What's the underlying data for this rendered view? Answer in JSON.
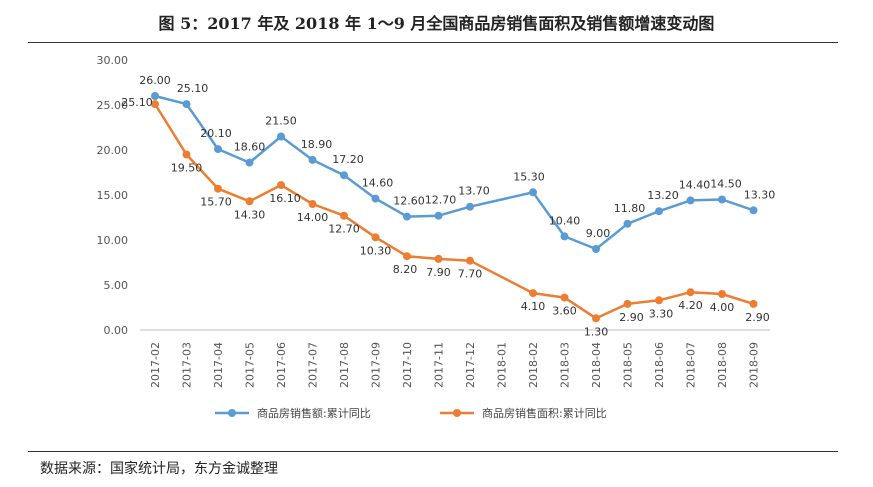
{
  "header": {
    "title": "图 5：2017 年及 2018 年 1～9 月全国商品房销售面积及销售额增速变动图"
  },
  "footer": {
    "source": "数据来源：国家统计局，东方金诚整理"
  },
  "chart_data": {
    "type": "line",
    "categories": [
      "2017-02",
      "2017-03",
      "2017-04",
      "2017-05",
      "2017-06",
      "2017-07",
      "2017-08",
      "2017-09",
      "2017-10",
      "2017-11",
      "2017-12",
      "2018-01",
      "2018-02",
      "2018-03",
      "2018-04",
      "2018-05",
      "2018-06",
      "2018-07",
      "2018-08",
      "2018-09"
    ],
    "ylim": [
      0,
      30
    ],
    "yticks": [
      "0.00",
      "5.00",
      "10.00",
      "15.00",
      "20.00",
      "25.00",
      "30.00"
    ],
    "grid": false,
    "legend_position": "bottom",
    "series": [
      {
        "name": "商品房销售额:累计同比",
        "color": "#5b9bd5",
        "values": [
          26.0,
          25.1,
          20.1,
          18.6,
          21.5,
          18.9,
          17.2,
          14.6,
          12.6,
          12.7,
          13.7,
          null,
          15.3,
          10.4,
          9.0,
          11.8,
          13.2,
          14.4,
          14.5,
          13.3
        ],
        "labels": [
          "26.00",
          "25.10",
          "20.10",
          "18.60",
          "21.50",
          "18.90",
          "17.20",
          "14.60",
          "12.60",
          "12.70",
          "13.70",
          null,
          "15.30",
          "10.40",
          "9.00",
          "11.80",
          "13.20",
          "14.40",
          "14.50",
          "13.30"
        ]
      },
      {
        "name": "商品房销售面积:累计同比",
        "color": "#ed7d31",
        "values": [
          25.1,
          19.5,
          15.7,
          14.3,
          16.1,
          14.0,
          12.7,
          10.3,
          8.2,
          7.9,
          7.7,
          null,
          4.1,
          3.6,
          1.3,
          2.9,
          3.3,
          4.2,
          4.0,
          2.9
        ],
        "labels": [
          "25.10",
          "19.50",
          "15.70",
          "14.30",
          "16.10",
          "14.00",
          "12.70",
          "10.30",
          "8.20",
          "7.90",
          "7.70",
          null,
          "4.10",
          "3.60",
          "1.30",
          "2.90",
          "3.30",
          "4.20",
          "4.00",
          "2.90"
        ]
      }
    ]
  }
}
